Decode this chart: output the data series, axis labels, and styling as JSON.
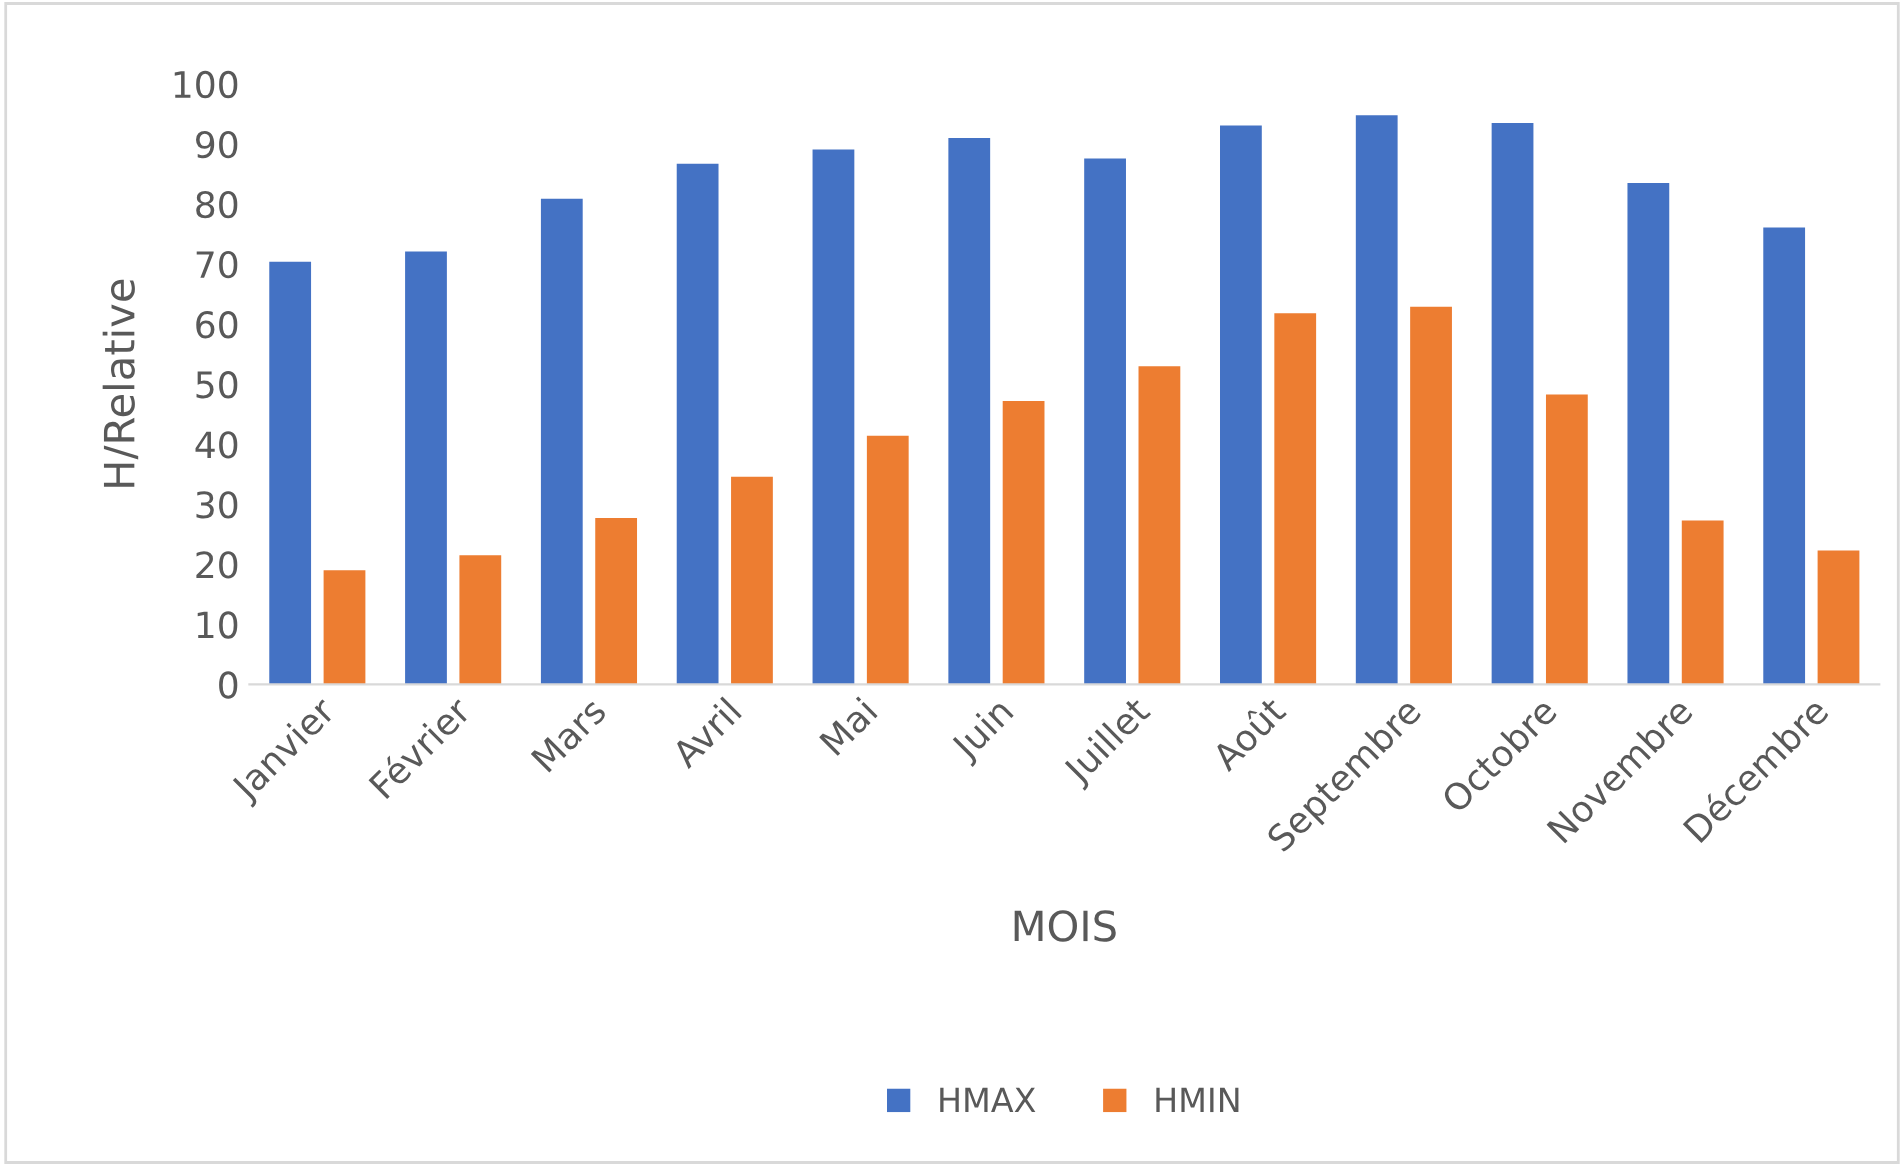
{
  "chart_data": {
    "type": "bar",
    "xlabel": "MOIS",
    "ylabel": "H/Relative",
    "categories": [
      "Janvier",
      "Février",
      "Mars",
      "Avril",
      "Mai",
      "Juin",
      "Juillet",
      "Août",
      "Septembre",
      "Octobre",
      "Novembre",
      "Décembre"
    ],
    "series": [
      {
        "name": "HMAX",
        "color": "#4472c4",
        "values": [
          70.4,
          72.1,
          80.9,
          86.7,
          89.1,
          91.0,
          87.6,
          93.1,
          94.8,
          93.5,
          83.5,
          76.1
        ]
      },
      {
        "name": "HMIN",
        "color": "#ed7d31",
        "values": [
          19.0,
          21.5,
          27.7,
          34.6,
          41.4,
          47.2,
          53.0,
          61.8,
          62.9,
          48.3,
          27.3,
          22.3
        ]
      }
    ],
    "ylim": [
      0,
      100
    ],
    "yticks": [
      0,
      10,
      20,
      30,
      40,
      50,
      60,
      70,
      80,
      90,
      100
    ],
    "grid": false,
    "legend": "bottom"
  }
}
